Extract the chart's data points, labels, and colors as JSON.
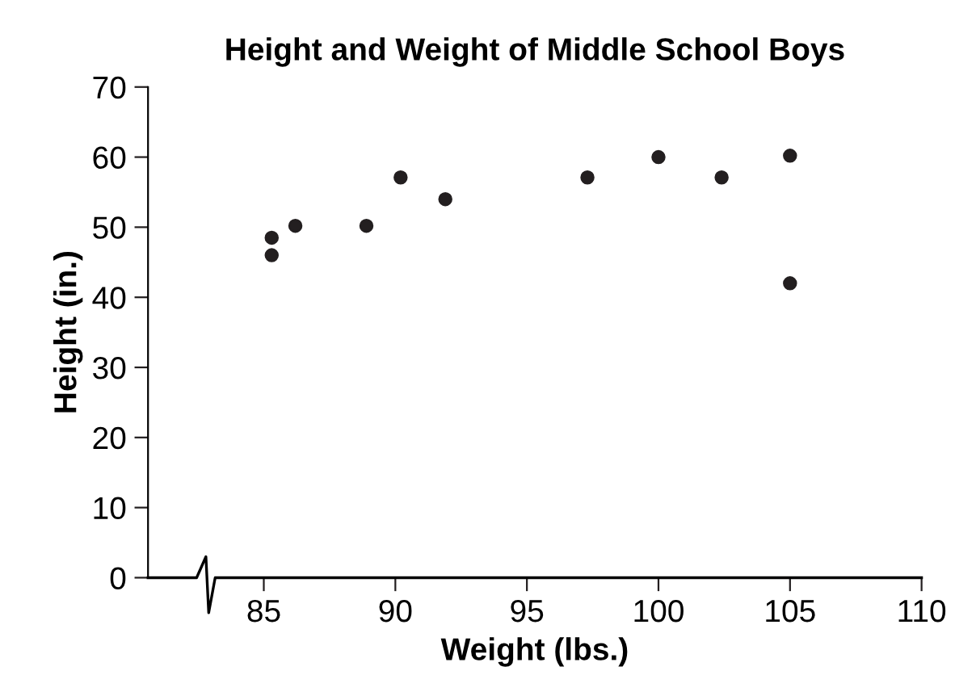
{
  "chart_data": {
    "type": "scatter",
    "title": "Height and Weight of Middle School Boys",
    "xlabel": "Weight (lbs.)",
    "ylabel": "Height (in.)",
    "x": [
      85.3,
      85.3,
      86.2,
      88.9,
      90.2,
      91.9,
      97.3,
      100.0,
      102.4,
      105.0,
      105.0
    ],
    "values": [
      48.5,
      46,
      50.2,
      50.2,
      57.1,
      54,
      57.1,
      60,
      57.1,
      60.2,
      42
    ],
    "color": "#231f20",
    "marker": "circle",
    "xlim": [
      80.6,
      110
    ],
    "xticks": [
      85,
      90,
      95,
      100,
      105,
      110
    ],
    "ylim": [
      0,
      70
    ],
    "yticks": [
      0,
      10,
      20,
      30,
      40,
      50,
      60,
      70
    ],
    "grid": false
  }
}
